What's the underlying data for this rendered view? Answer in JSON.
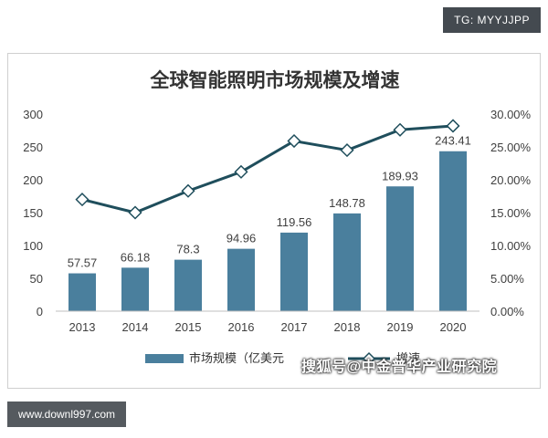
{
  "watermarks": {
    "top": "TG: MYYJJPP",
    "bottom": "www.downl997.com",
    "overlay": "搜狐号@中金普华产业研究院"
  },
  "chart_data": {
    "type": "bar+line",
    "title": "全球智能照明市场规模及增速",
    "categories": [
      "2013",
      "2014",
      "2015",
      "2016",
      "2017",
      "2018",
      "2019",
      "2020"
    ],
    "series": [
      {
        "name": "市场规模（亿美元）",
        "type": "bar",
        "axis": "left",
        "color": "#4a7f9d",
        "values": [
          57.57,
          66.18,
          78.3,
          94.96,
          119.56,
          148.78,
          189.93,
          243.41
        ],
        "labels": [
          "57.57",
          "66.18",
          "78.3",
          "94.96",
          "119.56",
          "148.78",
          "189.93",
          "243.41"
        ]
      },
      {
        "name": "增速",
        "type": "line",
        "axis": "right",
        "color": "#1f4e5c",
        "values": [
          17.0,
          15.0,
          18.3,
          21.2,
          25.9,
          24.5,
          27.6,
          28.2
        ]
      }
    ],
    "y_left": {
      "min": 0,
      "max": 300,
      "ticks": [
        "0",
        "50",
        "100",
        "150",
        "200",
        "250",
        "300"
      ]
    },
    "y_right": {
      "min": 0,
      "max": 30,
      "ticks": [
        "0.00%",
        "5.00%",
        "10.00%",
        "15.00%",
        "20.00%",
        "25.00%",
        "30.00%"
      ]
    },
    "legend": {
      "bar_label": "市场规模（亿美元",
      "line_label": "增速"
    },
    "legend_position": "bottom",
    "grid": false
  }
}
